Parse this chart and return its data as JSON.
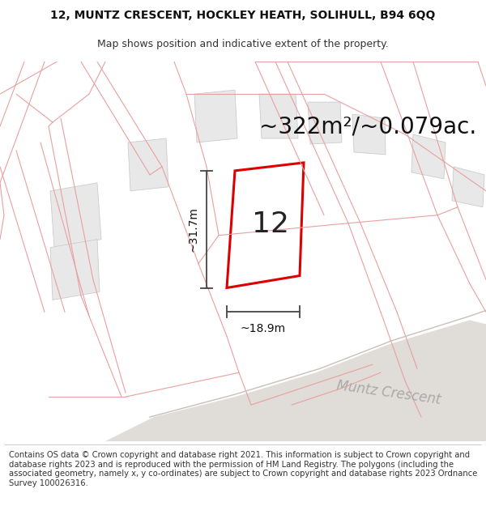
{
  "title_line1": "12, MUNTZ CRESCENT, HOCKLEY HEATH, SOLIHULL, B94 6QQ",
  "title_line2": "Map shows position and indicative extent of the property.",
  "area_text": "~322m²/~0.079ac.",
  "width_label": "~18.9m",
  "height_label": "~31.7m",
  "plot_number": "12",
  "street_name": "Muntz Crescent",
  "footer_text": "Contains OS data © Crown copyright and database right 2021. This information is subject to Crown copyright and database rights 2023 and is reproduced with the permission of HM Land Registry. The polygons (including the associated geometry, namely x, y co-ordinates) are subject to Crown copyright and database rights 2023 Ordnance Survey 100026316.",
  "bg_color": "#ffffff",
  "map_bg": "#ffffff",
  "plot_fill": "#ffffff",
  "plot_edge": "#dd0000",
  "building_fill": "#e8e8e8",
  "building_edge": "#cccccc",
  "footer_bg": "#ffffff",
  "pink_line": "#e8a0a0",
  "dim_line_color": "#444444",
  "title_fontsize": 10,
  "subtitle_fontsize": 9,
  "area_fontsize": 20,
  "label_fontsize": 10,
  "plot_number_fontsize": 26,
  "street_fontsize": 12,
  "footer_fontsize": 7.2
}
